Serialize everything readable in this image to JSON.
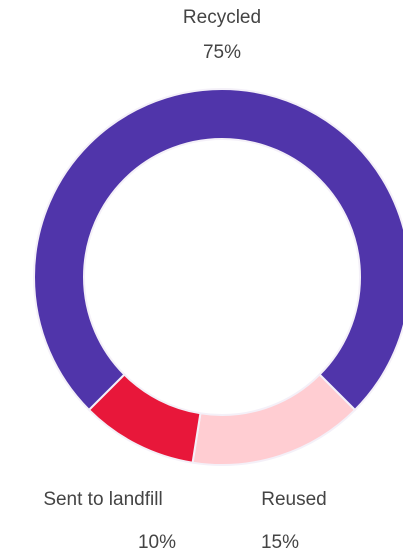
{
  "chart_data": {
    "type": "donut",
    "categories": [
      "Recycled",
      "Reused",
      "Sent to landfill"
    ],
    "values": [
      75,
      15,
      10
    ],
    "value_labels": [
      "75%",
      "15%",
      "10%"
    ],
    "colors": [
      "#5035aa",
      "#ffcdd2",
      "#e8173a"
    ]
  }
}
